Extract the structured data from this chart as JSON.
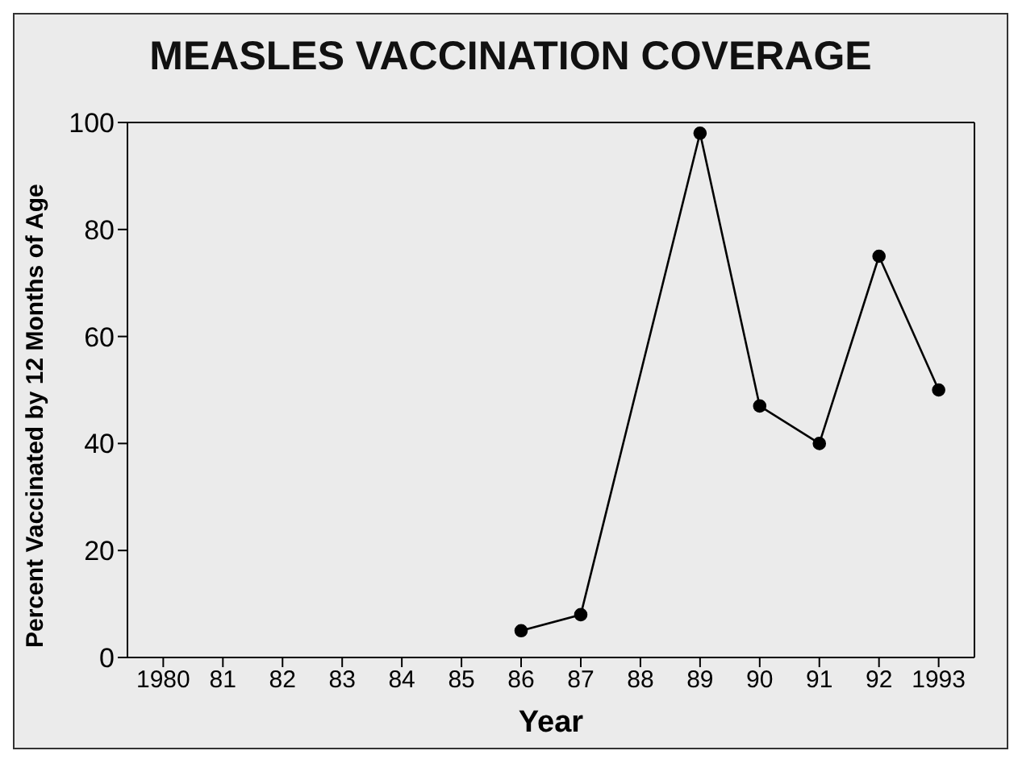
{
  "chart_data": {
    "type": "line",
    "title": "MEASLES VACCINATION COVERAGE",
    "xlabel": "Year",
    "ylabel": "Percent Vaccinated by 12 Months of Age",
    "x": [
      1986,
      1987,
      1989,
      1990,
      1991,
      1992,
      1993
    ],
    "series": [
      {
        "color": "#000000",
        "values": [
          5,
          8,
          98,
          47,
          40,
          75,
          50
        ]
      }
    ],
    "xlim": [
      1979.4,
      1993.6
    ],
    "xticks": [
      {
        "value": 1980,
        "label": "1980"
      },
      {
        "value": 1981,
        "label": "81"
      },
      {
        "value": 1982,
        "label": "82"
      },
      {
        "value": 1983,
        "label": "83"
      },
      {
        "value": 1984,
        "label": "84"
      },
      {
        "value": 1985,
        "label": "85"
      },
      {
        "value": 1986,
        "label": "86"
      },
      {
        "value": 1987,
        "label": "87"
      },
      {
        "value": 1988,
        "label": "88"
      },
      {
        "value": 1989,
        "label": "89"
      },
      {
        "value": 1990,
        "label": "90"
      },
      {
        "value": 1991,
        "label": "91"
      },
      {
        "value": 1992,
        "label": "92"
      },
      {
        "value": 1993,
        "label": "1993"
      }
    ],
    "ylim": [
      0,
      100
    ],
    "yticks": [
      0,
      20,
      40,
      60,
      80,
      100
    ],
    "marker": "circle",
    "line_style": "solid",
    "legend": false
  }
}
